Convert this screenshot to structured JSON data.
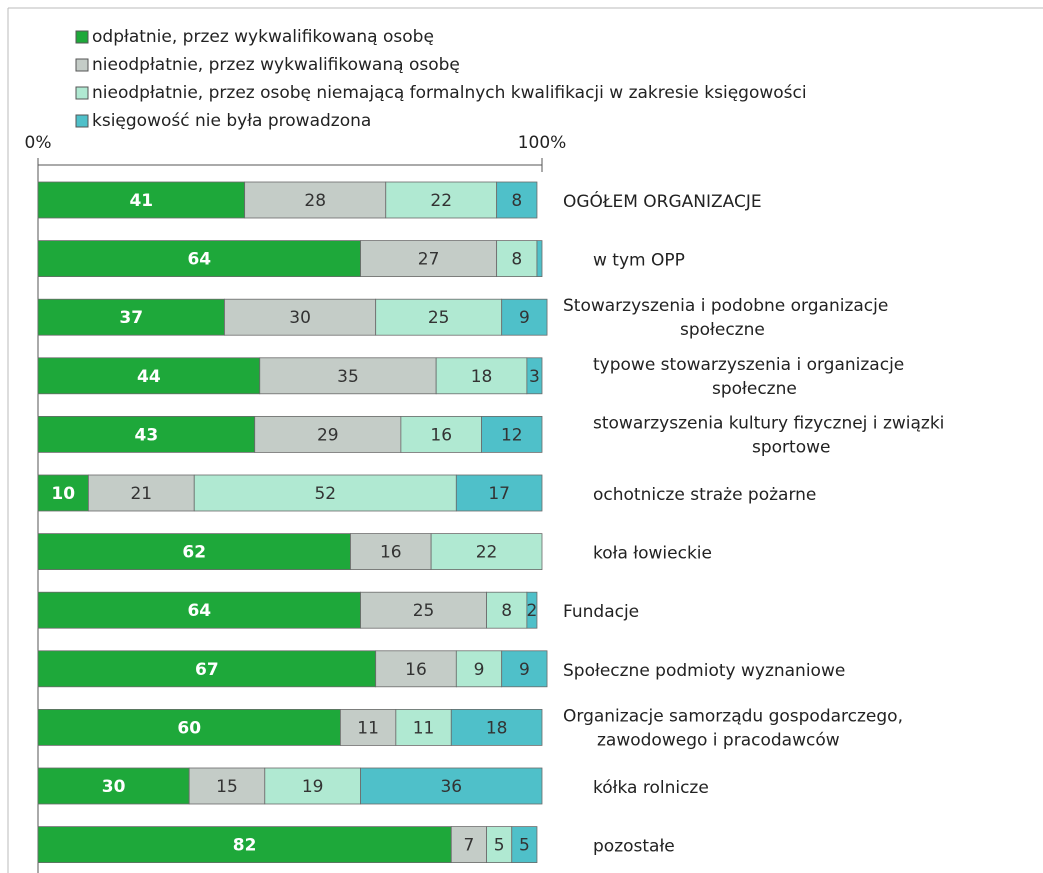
{
  "chart_data": {
    "type": "stacked_bar_horizontal",
    "categories": [
      [
        "OGÓŁEM ORGANIZACJE"
      ],
      [
        "w tym OPP"
      ],
      [
        "Stowarzyszenia i podobne organizacje",
        "społeczne"
      ],
      [
        "typowe stowarzyszenia i organizacje",
        "społeczne"
      ],
      [
        "stowarzyszenia kultury fizycznej i związki",
        "sportowe"
      ],
      [
        "ochotnicze straże pożarne"
      ],
      [
        "koła łowieckie"
      ],
      [
        "Fundacje"
      ],
      [
        "Społeczne podmioty wyznaniowe"
      ],
      [
        "Organizacje samorządu gospodarczego,",
        "zawodowego i pracodawców"
      ],
      [
        "kółka rolnicze"
      ],
      [
        "pozostałe"
      ]
    ],
    "series": [
      {
        "name": "odpłatnie, przez wykwalifikowaną osobę",
        "color": "#1ea83a",
        "values": [
          41,
          64,
          37,
          44,
          43,
          10,
          62,
          64,
          67,
          60,
          30,
          82
        ]
      },
      {
        "name": "nieodpłatnie, przez wykwalifikowaną osobę",
        "color": "#c4ccc7",
        "values": [
          28,
          27,
          30,
          35,
          29,
          21,
          16,
          25,
          16,
          11,
          15,
          7
        ]
      },
      {
        "name": "nieodpłatnie, przez osobę niemającą formalnych kwalifikacji w zakresie księgowości",
        "color": "#b0e9d2",
        "values": [
          22,
          8,
          25,
          18,
          16,
          52,
          22,
          8,
          9,
          11,
          19,
          5
        ]
      },
      {
        "name": "księgowość nie była prowadzona",
        "color": "#4fc0c9",
        "values": [
          8,
          1,
          9,
          3,
          12,
          17,
          0,
          2,
          9,
          18,
          36,
          5
        ]
      }
    ],
    "xlim": [
      0,
      100
    ],
    "xticks": [
      {
        "value": 0,
        "label": "0%"
      },
      {
        "value": 100,
        "label": "100%"
      }
    ],
    "legend": "top-left"
  }
}
